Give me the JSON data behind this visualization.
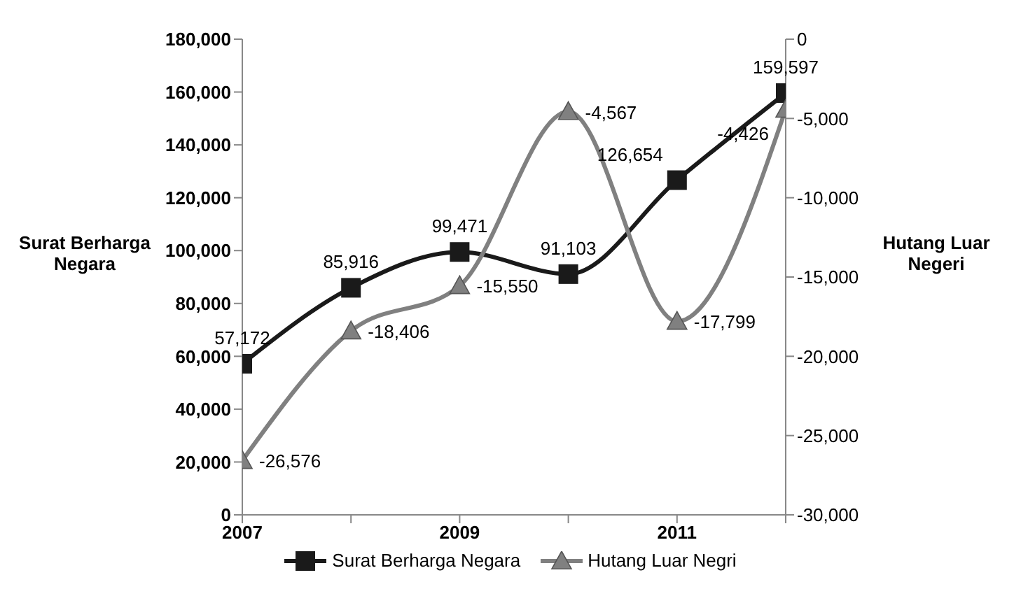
{
  "chart_data": {
    "type": "line",
    "ylabel": "Surat Berharga Negara",
    "y2label": "Hutang Luar Negeri",
    "x": [
      2007,
      2008,
      2009,
      2010,
      2011,
      2012
    ],
    "xlim": [
      2007,
      2012
    ],
    "xticks": [
      2007,
      {
        "value": 2008,
        "label": null
      },
      2009,
      {
        "value": 2010,
        "label": null
      },
      2011,
      {
        "value": 2012,
        "label": null
      }
    ],
    "ylim": [
      0,
      180000
    ],
    "yticks": [
      {
        "value": 0,
        "label": "0"
      },
      {
        "value": 20000,
        "label": "20,000"
      },
      {
        "value": 40000,
        "label": "40,000"
      },
      {
        "value": 60000,
        "label": "60,000"
      },
      {
        "value": 80000,
        "label": "80,000"
      },
      {
        "value": 100000,
        "label": "100,000"
      },
      {
        "value": 120000,
        "label": "120,000"
      },
      {
        "value": 140000,
        "label": "140,000"
      },
      {
        "value": 160000,
        "label": "160,000"
      },
      {
        "value": 180000,
        "label": "180,000"
      }
    ],
    "y2lim": [
      -30000,
      0
    ],
    "y2ticks": [
      {
        "value": -30000,
        "label": "-30,000"
      },
      {
        "value": -25000,
        "label": "-25,000"
      },
      {
        "value": -20000,
        "label": "-20,000"
      },
      {
        "value": -15000,
        "label": "-15,000"
      },
      {
        "value": -10000,
        "label": "-10,000"
      },
      {
        "value": -5000,
        "label": "-5,000"
      },
      {
        "value": 0,
        "label": "0"
      }
    ],
    "series": [
      {
        "name": "Surat Berharga Negara",
        "color": "#1a1a1a",
        "marker": "square",
        "values": [
          57172,
          85916,
          99471,
          91103,
          126654,
          159597
        ],
        "value_labels": [
          "57,172",
          "85,916",
          "99,471",
          "91,103",
          "126,654",
          "159,597"
        ]
      },
      {
        "name": "Hutang Luar Negri",
        "color": "#808080",
        "marker": "triangle",
        "axis": "y2",
        "values": [
          -26576,
          -18406,
          -15550,
          -4567,
          -17799,
          -4426
        ],
        "value_labels": [
          "-26,576",
          "-18,406",
          "-15,550",
          "-4,567",
          "-17,799",
          "-4,426"
        ]
      }
    ],
    "legend": "bottom",
    "grid": false
  }
}
